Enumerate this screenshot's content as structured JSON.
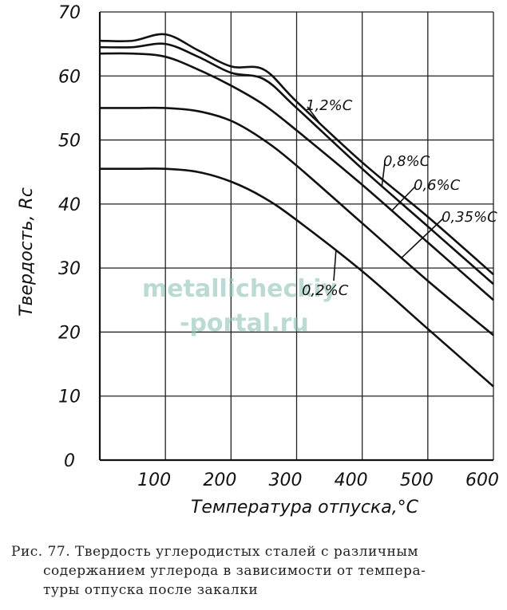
{
  "chart_data": {
    "type": "line",
    "xlabel": "Температура отпуска,°C",
    "ylabel": "Твердость, Rc",
    "xlim": [
      0,
      600
    ],
    "ylim": [
      0,
      70
    ],
    "x_ticks": [
      "100",
      "200",
      "300",
      "400",
      "500",
      "600"
    ],
    "y_ticks": [
      "0",
      "10",
      "20",
      "30",
      "40",
      "50",
      "60",
      "70"
    ],
    "grid": true,
    "series": [
      {
        "name": "1,2%C",
        "x": [
          0,
          50,
          100,
          150,
          200,
          250,
          300,
          400,
          500,
          600
        ],
        "y": [
          65.5,
          65.5,
          66.5,
          64,
          61.5,
          61,
          56,
          46.5,
          38,
          29
        ]
      },
      {
        "name": "0,8%C",
        "x": [
          0,
          50,
          100,
          150,
          200,
          250,
          300,
          400,
          500,
          600
        ],
        "y": [
          64.5,
          64.5,
          65,
          63,
          60.5,
          59.5,
          55,
          45.5,
          36.5,
          27.5
        ]
      },
      {
        "name": "0,6%C",
        "x": [
          0,
          50,
          100,
          150,
          200,
          250,
          300,
          400,
          500,
          600
        ],
        "y": [
          63.5,
          63.5,
          63,
          61,
          58.5,
          55.5,
          51.5,
          43,
          34,
          25
        ]
      },
      {
        "name": "0,35%C",
        "x": [
          0,
          50,
          100,
          150,
          200,
          250,
          300,
          400,
          500,
          600
        ],
        "y": [
          55,
          55,
          55,
          54.5,
          53,
          50,
          46,
          37,
          28,
          19.5
        ]
      },
      {
        "name": "0,2%C",
        "x": [
          0,
          50,
          100,
          150,
          200,
          250,
          300,
          400,
          500,
          600
        ],
        "y": [
          45.5,
          45.5,
          45.5,
          45,
          43.5,
          41,
          37.5,
          29.5,
          20.5,
          11.5
        ]
      }
    ]
  },
  "watermark": [
    "metallicheckiy",
    "-portal.ru"
  ],
  "caption": {
    "line1": "Рис. 77. Твердость углеродистых сталей с различным",
    "line2": "содержанием углерода в зависимости от темпера-",
    "line3": "туры отпуска после закалки"
  }
}
